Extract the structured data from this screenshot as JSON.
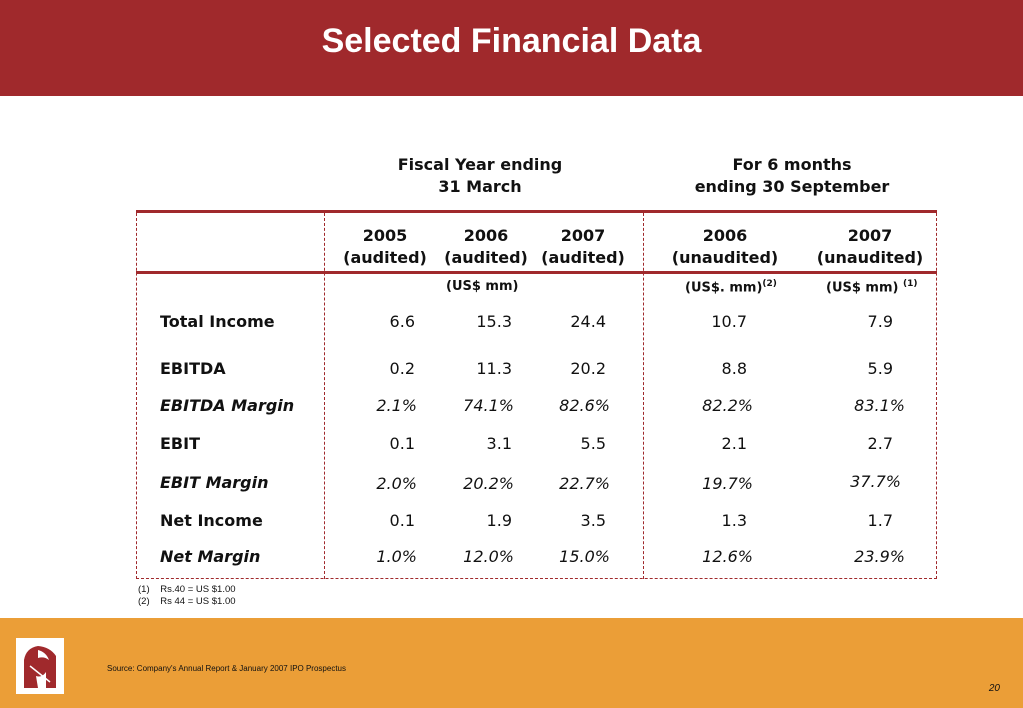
{
  "slide": {
    "title": "Selected Financial Data",
    "group_fiscal": [
      "Fiscal Year ending",
      "31 March"
    ],
    "group_six_months": [
      "For 6 months",
      "ending 30 September"
    ],
    "columns": [
      {
        "year": "2005",
        "status": "(audited)"
      },
      {
        "year": "2006",
        "status": "(audited)"
      },
      {
        "year": "2007",
        "status": "(audited)"
      },
      {
        "year": "2006",
        "status": "(unaudited)"
      },
      {
        "year": "2007",
        "status": "(unaudited)"
      }
    ],
    "units": {
      "fiscal": "(US$ mm)",
      "six_2006": "(US$. mm)",
      "six_2006_note": "(2)",
      "six_2007": "(US$ mm)",
      "six_2007_note": "(1)"
    },
    "rows": [
      {
        "label": "Total Income",
        "values": [
          "6.6",
          "15.3",
          "24.4",
          "10.7",
          "7.9"
        ]
      },
      {
        "label": "EBITDA",
        "values": [
          "0.2",
          "11.3",
          "20.2",
          "8.8",
          "5.9"
        ]
      },
      {
        "label": "EBITDA Margin",
        "values": [
          "2.1%",
          "74.1%",
          "82.6%",
          "82.2%",
          "83.1%"
        ]
      },
      {
        "label": "EBIT",
        "values": [
          "0.1",
          "3.1",
          "5.5",
          "2.1",
          "2.7"
        ]
      },
      {
        "label": "EBIT Margin",
        "values": [
          "2.0%",
          "20.2%",
          "22.7%",
          "19.7%",
          "37.7%"
        ]
      },
      {
        "label": "Net Income",
        "values": [
          "0.1",
          "1.9",
          "3.5",
          "1.3",
          "1.7"
        ]
      },
      {
        "label": "Net Margin",
        "values": [
          "1.0%",
          "12.0%",
          "15.0%",
          "12.6%",
          "23.9%"
        ]
      }
    ],
    "footnotes": [
      {
        "num": "(1)",
        "text": "Rs.40 = US $1.00"
      },
      {
        "num": "(2)",
        "text": "Rs 44 = US $1.00"
      }
    ],
    "source": "Source: Company's Annual Report & January 2007 IPO Prospectus",
    "page_number": "20",
    "colors": {
      "header": "#a0292c",
      "footer_band": "#eb9e37",
      "rules": "#a0292c"
    }
  }
}
